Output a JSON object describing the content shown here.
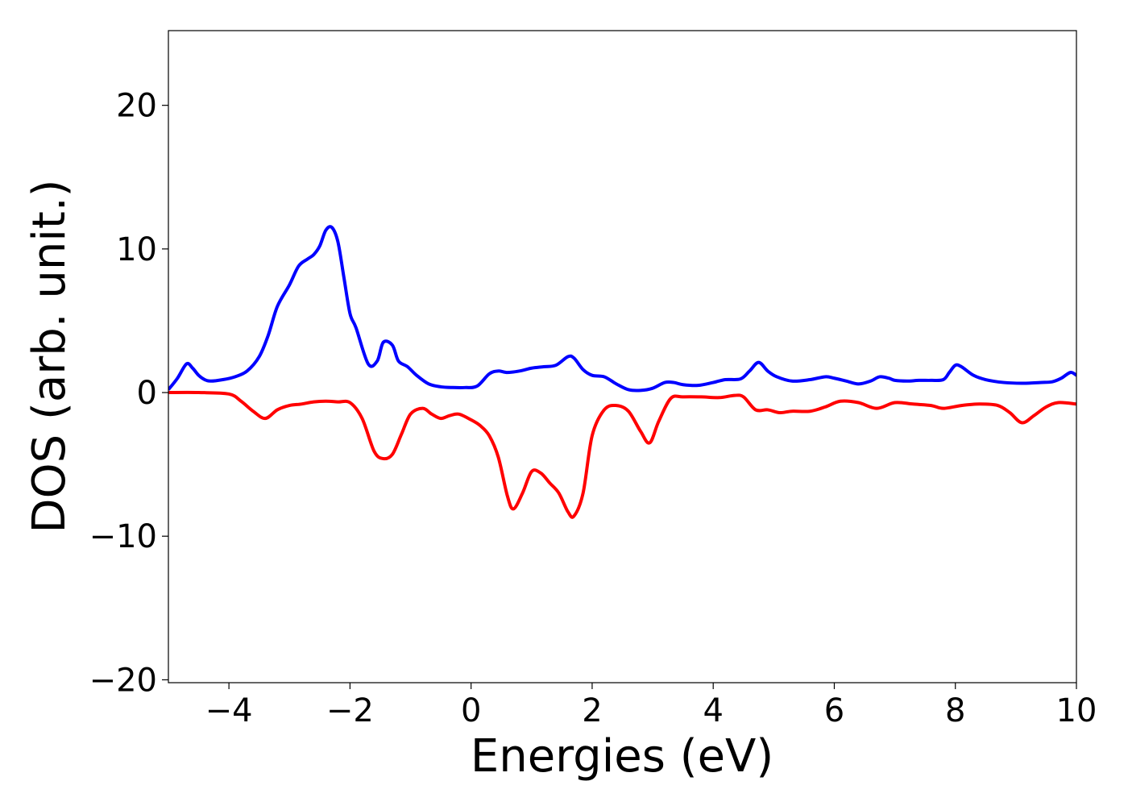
{
  "chart_data": {
    "type": "line",
    "title": "",
    "xlabel": "Energies (eV)",
    "ylabel": "DOS (arb. unit.)",
    "xlim": [
      -5,
      10
    ],
    "ylim": [
      -20.2,
      25.2
    ],
    "grid": false,
    "legend": "none",
    "x_ticks": [
      -4,
      -2,
      0,
      2,
      4,
      6,
      8,
      10
    ],
    "x_tick_labels": [
      "−4",
      "−2",
      "0",
      "2",
      "4",
      "6",
      "8",
      "10"
    ],
    "y_ticks": [
      -20,
      -10,
      0,
      10,
      20
    ],
    "y_tick_labels": [
      "−20",
      "−10",
      "0",
      "10",
      "20"
    ],
    "series": [
      {
        "color": "#0000ff",
        "x": [
          -5.0,
          -4.85,
          -4.7,
          -4.6,
          -4.5,
          -4.4,
          -4.3,
          -4.1,
          -3.9,
          -3.7,
          -3.5,
          -3.35,
          -3.2,
          -3.0,
          -2.85,
          -2.7,
          -2.6,
          -2.5,
          -2.4,
          -2.3,
          -2.2,
          -2.1,
          -2.0,
          -1.9,
          -1.7,
          -1.55,
          -1.45,
          -1.3,
          -1.2,
          -1.05,
          -0.9,
          -0.7,
          -0.5,
          -0.3,
          -0.1,
          0.1,
          0.3,
          0.45,
          0.6,
          0.8,
          1.0,
          1.2,
          1.4,
          1.6,
          1.7,
          1.85,
          2.0,
          2.2,
          2.4,
          2.6,
          2.8,
          3.0,
          3.2,
          3.35,
          3.5,
          3.75,
          4.0,
          4.2,
          4.45,
          4.6,
          4.75,
          4.9,
          5.05,
          5.3,
          5.6,
          5.85,
          6.0,
          6.2,
          6.4,
          6.6,
          6.75,
          6.9,
          7.0,
          7.2,
          7.4,
          7.6,
          7.8,
          7.9,
          8.0,
          8.1,
          8.3,
          8.5,
          8.8,
          9.1,
          9.4,
          9.6,
          9.75,
          9.9,
          10.0
        ],
        "y": [
          0.2,
          1.0,
          2.0,
          1.7,
          1.2,
          0.9,
          0.8,
          0.9,
          1.1,
          1.5,
          2.5,
          4.0,
          6.0,
          7.5,
          8.8,
          9.3,
          9.6,
          10.2,
          11.3,
          11.5,
          10.5,
          8.0,
          5.5,
          4.5,
          2.0,
          2.2,
          3.5,
          3.3,
          2.2,
          1.8,
          1.2,
          0.6,
          0.4,
          0.35,
          0.35,
          0.45,
          1.3,
          1.5,
          1.4,
          1.5,
          1.7,
          1.8,
          1.9,
          2.5,
          2.4,
          1.6,
          1.2,
          1.1,
          0.6,
          0.2,
          0.15,
          0.3,
          0.7,
          0.7,
          0.55,
          0.5,
          0.7,
          0.9,
          0.95,
          1.5,
          2.1,
          1.5,
          1.1,
          0.8,
          0.9,
          1.1,
          1.0,
          0.8,
          0.6,
          0.8,
          1.1,
          1.0,
          0.85,
          0.8,
          0.85,
          0.85,
          0.9,
          1.4,
          1.9,
          1.8,
          1.2,
          0.9,
          0.7,
          0.65,
          0.7,
          0.75,
          1.0,
          1.4,
          1.2
        ]
      },
      {
        "color": "#ff0000",
        "x": [
          -5.0,
          -4.5,
          -4.0,
          -3.8,
          -3.6,
          -3.4,
          -3.2,
          -3.0,
          -2.8,
          -2.6,
          -2.4,
          -2.2,
          -2.0,
          -1.8,
          -1.6,
          -1.45,
          -1.3,
          -1.15,
          -1.0,
          -0.8,
          -0.65,
          -0.5,
          -0.35,
          -0.2,
          0.0,
          0.15,
          0.3,
          0.45,
          0.6,
          0.7,
          0.85,
          1.0,
          1.15,
          1.3,
          1.45,
          1.6,
          1.7,
          1.85,
          2.0,
          2.2,
          2.4,
          2.6,
          2.8,
          2.95,
          3.1,
          3.3,
          3.5,
          3.8,
          4.1,
          4.35,
          4.5,
          4.7,
          4.9,
          5.1,
          5.3,
          5.6,
          5.85,
          6.1,
          6.4,
          6.7,
          7.0,
          7.3,
          7.6,
          7.8,
          8.1,
          8.4,
          8.7,
          8.9,
          9.1,
          9.3,
          9.5,
          9.7,
          10.0
        ],
        "y": [
          0.0,
          0.0,
          -0.1,
          -0.6,
          -1.3,
          -1.8,
          -1.2,
          -0.9,
          -0.8,
          -0.65,
          -0.6,
          -0.65,
          -0.7,
          -1.8,
          -4.1,
          -4.6,
          -4.3,
          -2.9,
          -1.5,
          -1.1,
          -1.5,
          -1.8,
          -1.6,
          -1.5,
          -1.9,
          -2.3,
          -3.0,
          -4.5,
          -7.2,
          -8.1,
          -7.0,
          -5.5,
          -5.6,
          -6.3,
          -7.0,
          -8.3,
          -8.6,
          -7.0,
          -3.0,
          -1.2,
          -0.9,
          -1.3,
          -2.7,
          -3.5,
          -2.0,
          -0.4,
          -0.3,
          -0.3,
          -0.35,
          -0.2,
          -0.3,
          -1.2,
          -1.2,
          -1.4,
          -1.3,
          -1.3,
          -1.0,
          -0.6,
          -0.7,
          -1.1,
          -0.7,
          -0.8,
          -0.9,
          -1.1,
          -0.9,
          -0.8,
          -0.9,
          -1.4,
          -2.1,
          -1.6,
          -1.0,
          -0.7,
          -0.8
        ]
      }
    ]
  }
}
